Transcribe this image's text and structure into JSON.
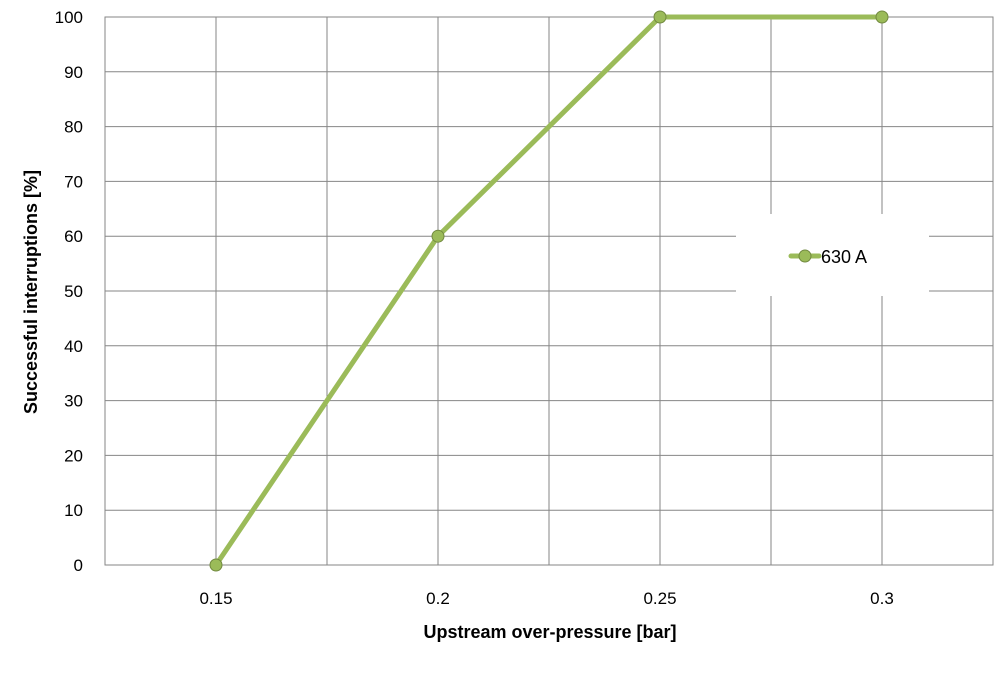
{
  "chart_data": {
    "type": "line",
    "title": "",
    "xlabel": "Upstream over-pressure [bar]",
    "ylabel": "Successful interruptions [%]",
    "x": [
      0.15,
      0.2,
      0.25,
      0.3
    ],
    "x_tick_labels": [
      "0.15",
      "0.2",
      "0.25",
      "0.3"
    ],
    "xlim": [
      0.125,
      0.325
    ],
    "ylim": [
      0,
      100
    ],
    "y_ticks": [
      0,
      10,
      20,
      30,
      40,
      50,
      60,
      70,
      80,
      90,
      100
    ],
    "grid": true,
    "legend_position": "right",
    "series": [
      {
        "name": "630 A",
        "values": [
          0,
          60,
          100,
          100
        ],
        "color": "#9BBB59",
        "marker_fill": "#9BBB59",
        "marker_stroke": "#71893F"
      }
    ]
  }
}
